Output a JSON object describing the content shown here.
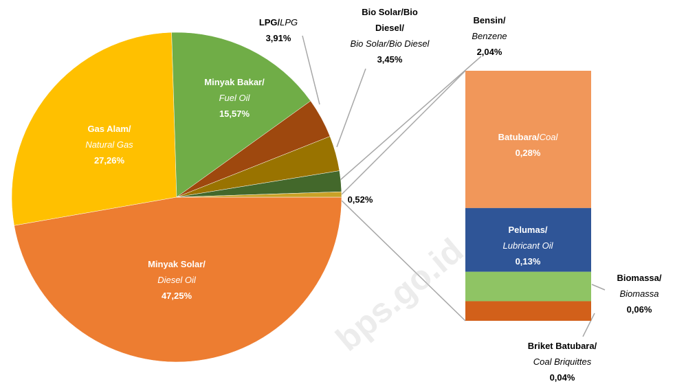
{
  "chart_data": {
    "type": "pie",
    "categories": [
      "Minyak Solar/",
      "Gas Alam/",
      "Minyak Bakar/",
      "LPG/",
      "Bio Solar/Bio Diesel/",
      "Bensin/",
      null
    ],
    "categories_en": [
      "Diesel Oil",
      "Natural Gas",
      "Fuel Oil",
      "LPG",
      "Bio Solar/Bio Diesel",
      "Benzene",
      null
    ],
    "values": [
      47.25,
      27.26,
      15.57,
      3.91,
      3.45,
      2.04,
      0.52
    ],
    "value_labels": [
      "47,25%",
      "27,26%",
      "15,57%",
      "3,91%",
      "3,45%",
      "2,04%",
      "0,52%"
    ],
    "colors": [
      "#ED7D31",
      "#FFC000",
      "#70AD47",
      "#9E480E",
      "#997300",
      "#43682B",
      "#C9A227"
    ],
    "breakdown": {
      "type": "bar",
      "categories": [
        "Batubara/",
        "Pelumas/",
        "Biomassa/",
        "Briket Batubara/"
      ],
      "categories_en": [
        "Coal",
        "Lubricant Oil",
        "Biomassa",
        "Coal Briquittes"
      ],
      "values": [
        0.28,
        0.13,
        0.06,
        0.04
      ],
      "value_labels": [
        "0,28%",
        "0,13%",
        "0,06%",
        "0,04%"
      ],
      "colors": [
        "#F1975A",
        "#2F5597",
        "#8FC464",
        "#D2601A"
      ]
    },
    "watermark": "bps.go.id"
  }
}
